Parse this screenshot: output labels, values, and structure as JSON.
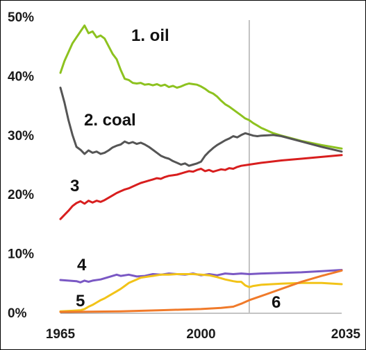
{
  "chart_data": {
    "type": "line",
    "title": "",
    "xlabel": "",
    "ylabel": "",
    "xlim": [
      1965,
      2035
    ],
    "ylim": [
      0,
      50
    ],
    "x_ticks": [
      "1965",
      "2000",
      "2035"
    ],
    "y_ticks": [
      "0%",
      "10%",
      "20%",
      "30%",
      "40%",
      "50%"
    ],
    "vertical_marker_x": 2012,
    "grid": false,
    "series": [
      {
        "name": "1. oil",
        "color": "#8dc21f",
        "points": [
          [
            1965,
            40.5
          ],
          [
            1966,
            42.5
          ],
          [
            1967,
            44
          ],
          [
            1968,
            45.5
          ],
          [
            1969,
            46.5
          ],
          [
            1970,
            47.5
          ],
          [
            1971,
            48.5
          ],
          [
            1972,
            47.2
          ],
          [
            1973,
            47.5
          ],
          [
            1974,
            46.5
          ],
          [
            1975,
            46.8
          ],
          [
            1976,
            46.3
          ],
          [
            1977,
            45
          ],
          [
            1978,
            43.7
          ],
          [
            1979,
            42.8
          ],
          [
            1980,
            41
          ],
          [
            1981,
            39.5
          ],
          [
            1982,
            39.3
          ],
          [
            1983,
            38.8
          ],
          [
            1984,
            38.7
          ],
          [
            1985,
            38.8
          ],
          [
            1986,
            38.5
          ],
          [
            1987,
            38.6
          ],
          [
            1988,
            38.4
          ],
          [
            1989,
            38.6
          ],
          [
            1990,
            38.3
          ],
          [
            1991,
            38.5
          ],
          [
            1992,
            38.1
          ],
          [
            1993,
            38.3
          ],
          [
            1994,
            38
          ],
          [
            1995,
            38.2
          ],
          [
            1996,
            38.5
          ],
          [
            1997,
            38.7
          ],
          [
            1998,
            38.6
          ],
          [
            1999,
            38.5
          ],
          [
            2000,
            38.2
          ],
          [
            2001,
            37.8
          ],
          [
            2002,
            37.3
          ],
          [
            2003,
            37
          ],
          [
            2004,
            36.5
          ],
          [
            2005,
            35.8
          ],
          [
            2006,
            35.2
          ],
          [
            2007,
            34.8
          ],
          [
            2008,
            34.3
          ],
          [
            2009,
            33.8
          ],
          [
            2010,
            33.3
          ],
          [
            2011,
            32.8
          ],
          [
            2012,
            32.5
          ],
          [
            2013,
            32
          ],
          [
            2014,
            31.6
          ],
          [
            2015,
            31.2
          ],
          [
            2016,
            30.9
          ],
          [
            2017,
            30.6
          ],
          [
            2018,
            30.3
          ],
          [
            2020,
            29.9
          ],
          [
            2025,
            29
          ],
          [
            2030,
            28.3
          ],
          [
            2035,
            27.7
          ]
        ]
      },
      {
        "name": "2. coal",
        "color": "#555555",
        "points": [
          [
            1965,
            38
          ],
          [
            1966,
            35.5
          ],
          [
            1967,
            32.5
          ],
          [
            1968,
            30
          ],
          [
            1969,
            28
          ],
          [
            1970,
            27.5
          ],
          [
            1971,
            26.8
          ],
          [
            1972,
            27.4
          ],
          [
            1973,
            27
          ],
          [
            1974,
            27.2
          ],
          [
            1975,
            26.8
          ],
          [
            1976,
            27
          ],
          [
            1977,
            27.4
          ],
          [
            1978,
            27.9
          ],
          [
            1979,
            28.2
          ],
          [
            1980,
            28.4
          ],
          [
            1981,
            28.9
          ],
          [
            1982,
            28.6
          ],
          [
            1983,
            28.8
          ],
          [
            1984,
            28.5
          ],
          [
            1985,
            28.7
          ],
          [
            1986,
            28.4
          ],
          [
            1987,
            28
          ],
          [
            1988,
            27.5
          ],
          [
            1989,
            27
          ],
          [
            1990,
            26.5
          ],
          [
            1991,
            26.2
          ],
          [
            1992,
            26
          ],
          [
            1993,
            25.6
          ],
          [
            1994,
            25.3
          ],
          [
            1995,
            25
          ],
          [
            1996,
            25.2
          ],
          [
            1997,
            24.8
          ],
          [
            1998,
            25
          ],
          [
            1999,
            25.2
          ],
          [
            2000,
            25.5
          ],
          [
            2001,
            26.5
          ],
          [
            2002,
            27.2
          ],
          [
            2003,
            27.8
          ],
          [
            2004,
            28.3
          ],
          [
            2005,
            28.7
          ],
          [
            2006,
            29.1
          ],
          [
            2007,
            29.4
          ],
          [
            2008,
            29.8
          ],
          [
            2009,
            29.6
          ],
          [
            2010,
            30
          ],
          [
            2011,
            30.3
          ],
          [
            2012,
            30.1
          ],
          [
            2013,
            29.9
          ],
          [
            2014,
            29.8
          ],
          [
            2015,
            29.9
          ],
          [
            2018,
            30
          ],
          [
            2020,
            29.8
          ],
          [
            2025,
            28.9
          ],
          [
            2030,
            28
          ],
          [
            2035,
            27.2
          ]
        ]
      },
      {
        "name": "3",
        "color": "#d81e1e",
        "points": [
          [
            1965,
            15.8
          ],
          [
            1966,
            16.5
          ],
          [
            1967,
            17.2
          ],
          [
            1968,
            18
          ],
          [
            1969,
            18.5
          ],
          [
            1970,
            18.8
          ],
          [
            1971,
            18.4
          ],
          [
            1972,
            18.9
          ],
          [
            1973,
            18.6
          ],
          [
            1974,
            18.9
          ],
          [
            1975,
            18.7
          ],
          [
            1976,
            19
          ],
          [
            1977,
            19.4
          ],
          [
            1978,
            19.8
          ],
          [
            1979,
            20.2
          ],
          [
            1980,
            20.5
          ],
          [
            1981,
            20.8
          ],
          [
            1982,
            21
          ],
          [
            1983,
            21.3
          ],
          [
            1984,
            21.6
          ],
          [
            1985,
            21.9
          ],
          [
            1986,
            22.1
          ],
          [
            1987,
            22.3
          ],
          [
            1988,
            22.5
          ],
          [
            1989,
            22.7
          ],
          [
            1990,
            22.6
          ],
          [
            1991,
            22.9
          ],
          [
            1992,
            23.1
          ],
          [
            1993,
            23.2
          ],
          [
            1994,
            23.3
          ],
          [
            1995,
            23.5
          ],
          [
            1996,
            23.7
          ],
          [
            1997,
            23.9
          ],
          [
            1998,
            23.8
          ],
          [
            1999,
            24.1
          ],
          [
            2000,
            24.3
          ],
          [
            2001,
            23.9
          ],
          [
            2002,
            24.1
          ],
          [
            2003,
            23.8
          ],
          [
            2004,
            24
          ],
          [
            2005,
            24.2
          ],
          [
            2006,
            24.1
          ],
          [
            2007,
            24.4
          ],
          [
            2008,
            24.3
          ],
          [
            2009,
            24.6
          ],
          [
            2010,
            24.8
          ],
          [
            2012,
            25
          ],
          [
            2015,
            25.3
          ],
          [
            2020,
            25.7
          ],
          [
            2025,
            26
          ],
          [
            2030,
            26.3
          ],
          [
            2035,
            26.6
          ]
        ]
      },
      {
        "name": "4",
        "color": "#7a58c4",
        "points": [
          [
            1965,
            5.5
          ],
          [
            1967,
            5.4
          ],
          [
            1969,
            5.3
          ],
          [
            1970,
            5.1
          ],
          [
            1971,
            5.4
          ],
          [
            1972,
            5.2
          ],
          [
            1973,
            5.4
          ],
          [
            1975,
            5.6
          ],
          [
            1977,
            6
          ],
          [
            1979,
            6.4
          ],
          [
            1980,
            6.2
          ],
          [
            1982,
            6.4
          ],
          [
            1984,
            6.1
          ],
          [
            1986,
            6.2
          ],
          [
            1988,
            6.5
          ],
          [
            1990,
            6.4
          ],
          [
            1992,
            6.6
          ],
          [
            1994,
            6.5
          ],
          [
            1996,
            6.4
          ],
          [
            1998,
            6.6
          ],
          [
            2000,
            6.3
          ],
          [
            2002,
            6.5
          ],
          [
            2004,
            6.3
          ],
          [
            2006,
            6.6
          ],
          [
            2008,
            6.5
          ],
          [
            2010,
            6.6
          ],
          [
            2012,
            6.5
          ],
          [
            2015,
            6.6
          ],
          [
            2020,
            6.7
          ],
          [
            2025,
            6.8
          ],
          [
            2030,
            7
          ],
          [
            2035,
            7.2
          ]
        ]
      },
      {
        "name": "5",
        "color": "#f2c318",
        "points": [
          [
            1965,
            0.2
          ],
          [
            1968,
            0.3
          ],
          [
            1970,
            0.4
          ],
          [
            1971,
            0.6
          ],
          [
            1972,
            1
          ],
          [
            1973,
            1.3
          ],
          [
            1974,
            1.7
          ],
          [
            1975,
            2.1
          ],
          [
            1976,
            2.4
          ],
          [
            1977,
            2.8
          ],
          [
            1978,
            3.2
          ],
          [
            1979,
            3.6
          ],
          [
            1980,
            4
          ],
          [
            1981,
            4.5
          ],
          [
            1982,
            5
          ],
          [
            1983,
            5.3
          ],
          [
            1984,
            5.6
          ],
          [
            1985,
            5.9
          ],
          [
            1986,
            6
          ],
          [
            1987,
            6.1
          ],
          [
            1988,
            6.2
          ],
          [
            1989,
            6.3
          ],
          [
            1990,
            6.4
          ],
          [
            1992,
            6.4
          ],
          [
            1994,
            6.5
          ],
          [
            1996,
            6.5
          ],
          [
            1998,
            6.5
          ],
          [
            2000,
            6.4
          ],
          [
            2002,
            6.3
          ],
          [
            2004,
            6
          ],
          [
            2006,
            5.6
          ],
          [
            2008,
            5.3
          ],
          [
            2009,
            5.2
          ],
          [
            2010,
            5.2
          ],
          [
            2011,
            4.6
          ],
          [
            2012,
            4.3
          ],
          [
            2013,
            4.5
          ],
          [
            2015,
            4.7
          ],
          [
            2020,
            4.9
          ],
          [
            2025,
            5
          ],
          [
            2030,
            5
          ],
          [
            2035,
            4.8
          ]
        ]
      },
      {
        "name": "6",
        "color": "#f07a2a",
        "points": [
          [
            1965,
            0.1
          ],
          [
            1980,
            0.2
          ],
          [
            1990,
            0.4
          ],
          [
            2000,
            0.6
          ],
          [
            2005,
            0.8
          ],
          [
            2008,
            1
          ],
          [
            2010,
            1.5
          ],
          [
            2012,
            2.1
          ],
          [
            2015,
            2.8
          ],
          [
            2020,
            4
          ],
          [
            2025,
            5.2
          ],
          [
            2030,
            6.2
          ],
          [
            2035,
            7.1
          ]
        ]
      }
    ]
  },
  "annotations": {
    "oil": "1. oil",
    "coal": "2. coal",
    "s3": "3",
    "s4": "4",
    "s5": "5",
    "s6": "6"
  }
}
